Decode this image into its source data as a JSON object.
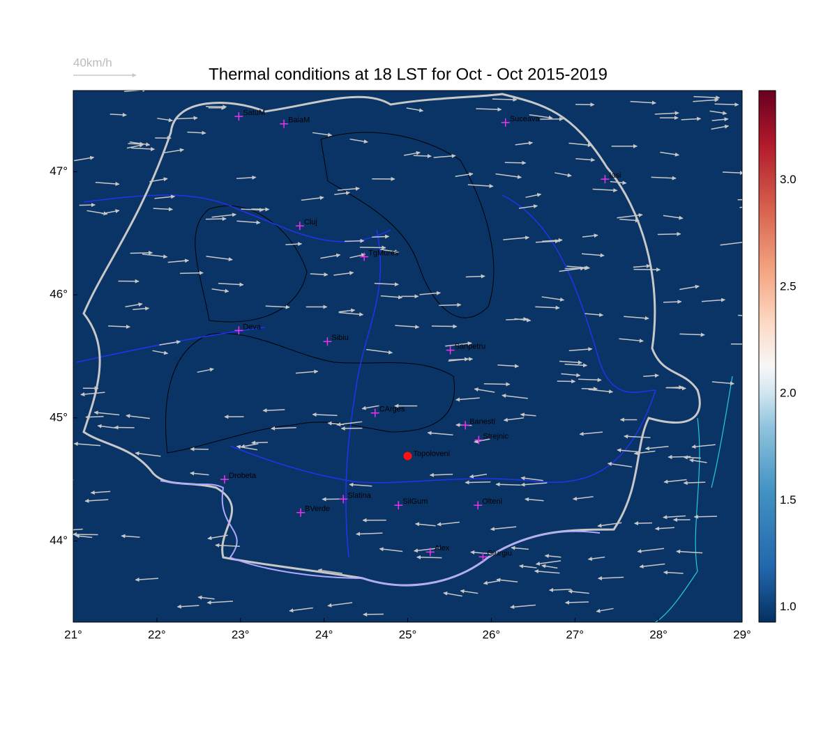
{
  "title": "Thermal conditions at 18 LST for Oct - Oct  2015-2019",
  "wind_scale_label": "40km/h",
  "xlim": [
    21,
    29
  ],
  "ylim": [
    43.34,
    47.66
  ],
  "xticks": [
    {
      "value": 21,
      "label": "21°"
    },
    {
      "value": 22,
      "label": "22°"
    },
    {
      "value": 23,
      "label": "23°"
    },
    {
      "value": 24,
      "label": "24°"
    },
    {
      "value": 25,
      "label": "25°"
    },
    {
      "value": 26,
      "label": "26°"
    },
    {
      "value": 27,
      "label": "27°"
    },
    {
      "value": 28,
      "label": "28°"
    },
    {
      "value": 29,
      "label": "29°"
    }
  ],
  "yticks": [
    {
      "value": 44,
      "label": "44°"
    },
    {
      "value": 45,
      "label": "45°"
    },
    {
      "value": 46,
      "label": "46°"
    },
    {
      "value": 47,
      "label": "47°"
    }
  ],
  "colorbar": {
    "lim": [
      0.93,
      3.42
    ],
    "ticks": [
      {
        "value": 1,
        "label": "1.0"
      },
      {
        "value": 1.5,
        "label": "1.5"
      },
      {
        "value": 2,
        "label": "2.0"
      },
      {
        "value": 2.5,
        "label": "2.5"
      },
      {
        "value": 3,
        "label": "3.0"
      }
    ]
  },
  "cities": [
    {
      "name": "SatuM",
      "lon": 22.98,
      "lat": 47.45
    },
    {
      "name": "BaiaM",
      "lon": 23.52,
      "lat": 47.39
    },
    {
      "name": "Suceava",
      "lon": 26.17,
      "lat": 47.4
    },
    {
      "name": "Iasi",
      "lon": 27.36,
      "lat": 46.94
    },
    {
      "name": "Cluj",
      "lon": 23.71,
      "lat": 46.56
    },
    {
      "name": "TgMures",
      "lon": 24.48,
      "lat": 46.31
    },
    {
      "name": "Deva",
      "lon": 22.98,
      "lat": 45.71
    },
    {
      "name": "Sibiu",
      "lon": 24.04,
      "lat": 45.62
    },
    {
      "name": "Sanpetru",
      "lon": 25.51,
      "lat": 45.55
    },
    {
      "name": "CArges",
      "lon": 24.61,
      "lat": 45.04
    },
    {
      "name": "Banesti",
      "lon": 25.69,
      "lat": 44.94
    },
    {
      "name": "Strejnic",
      "lon": 25.85,
      "lat": 44.82
    },
    {
      "name": "Drobeta",
      "lon": 22.81,
      "lat": 44.5
    },
    {
      "name": "Slatina",
      "lon": 24.23,
      "lat": 44.34
    },
    {
      "name": "SilGum",
      "lon": 24.89,
      "lat": 44.29
    },
    {
      "name": "Olteni",
      "lon": 25.84,
      "lat": 44.29
    },
    {
      "name": "BVerde",
      "lon": 23.72,
      "lat": 44.23
    },
    {
      "name": "Alex",
      "lon": 25.27,
      "lat": 43.91
    },
    {
      "name": "Giurgiu",
      "lon": 25.9,
      "lat": 43.87
    }
  ],
  "site": {
    "name": "Topoloveni",
    "lon": 25.0,
    "lat": 44.69
  }
}
